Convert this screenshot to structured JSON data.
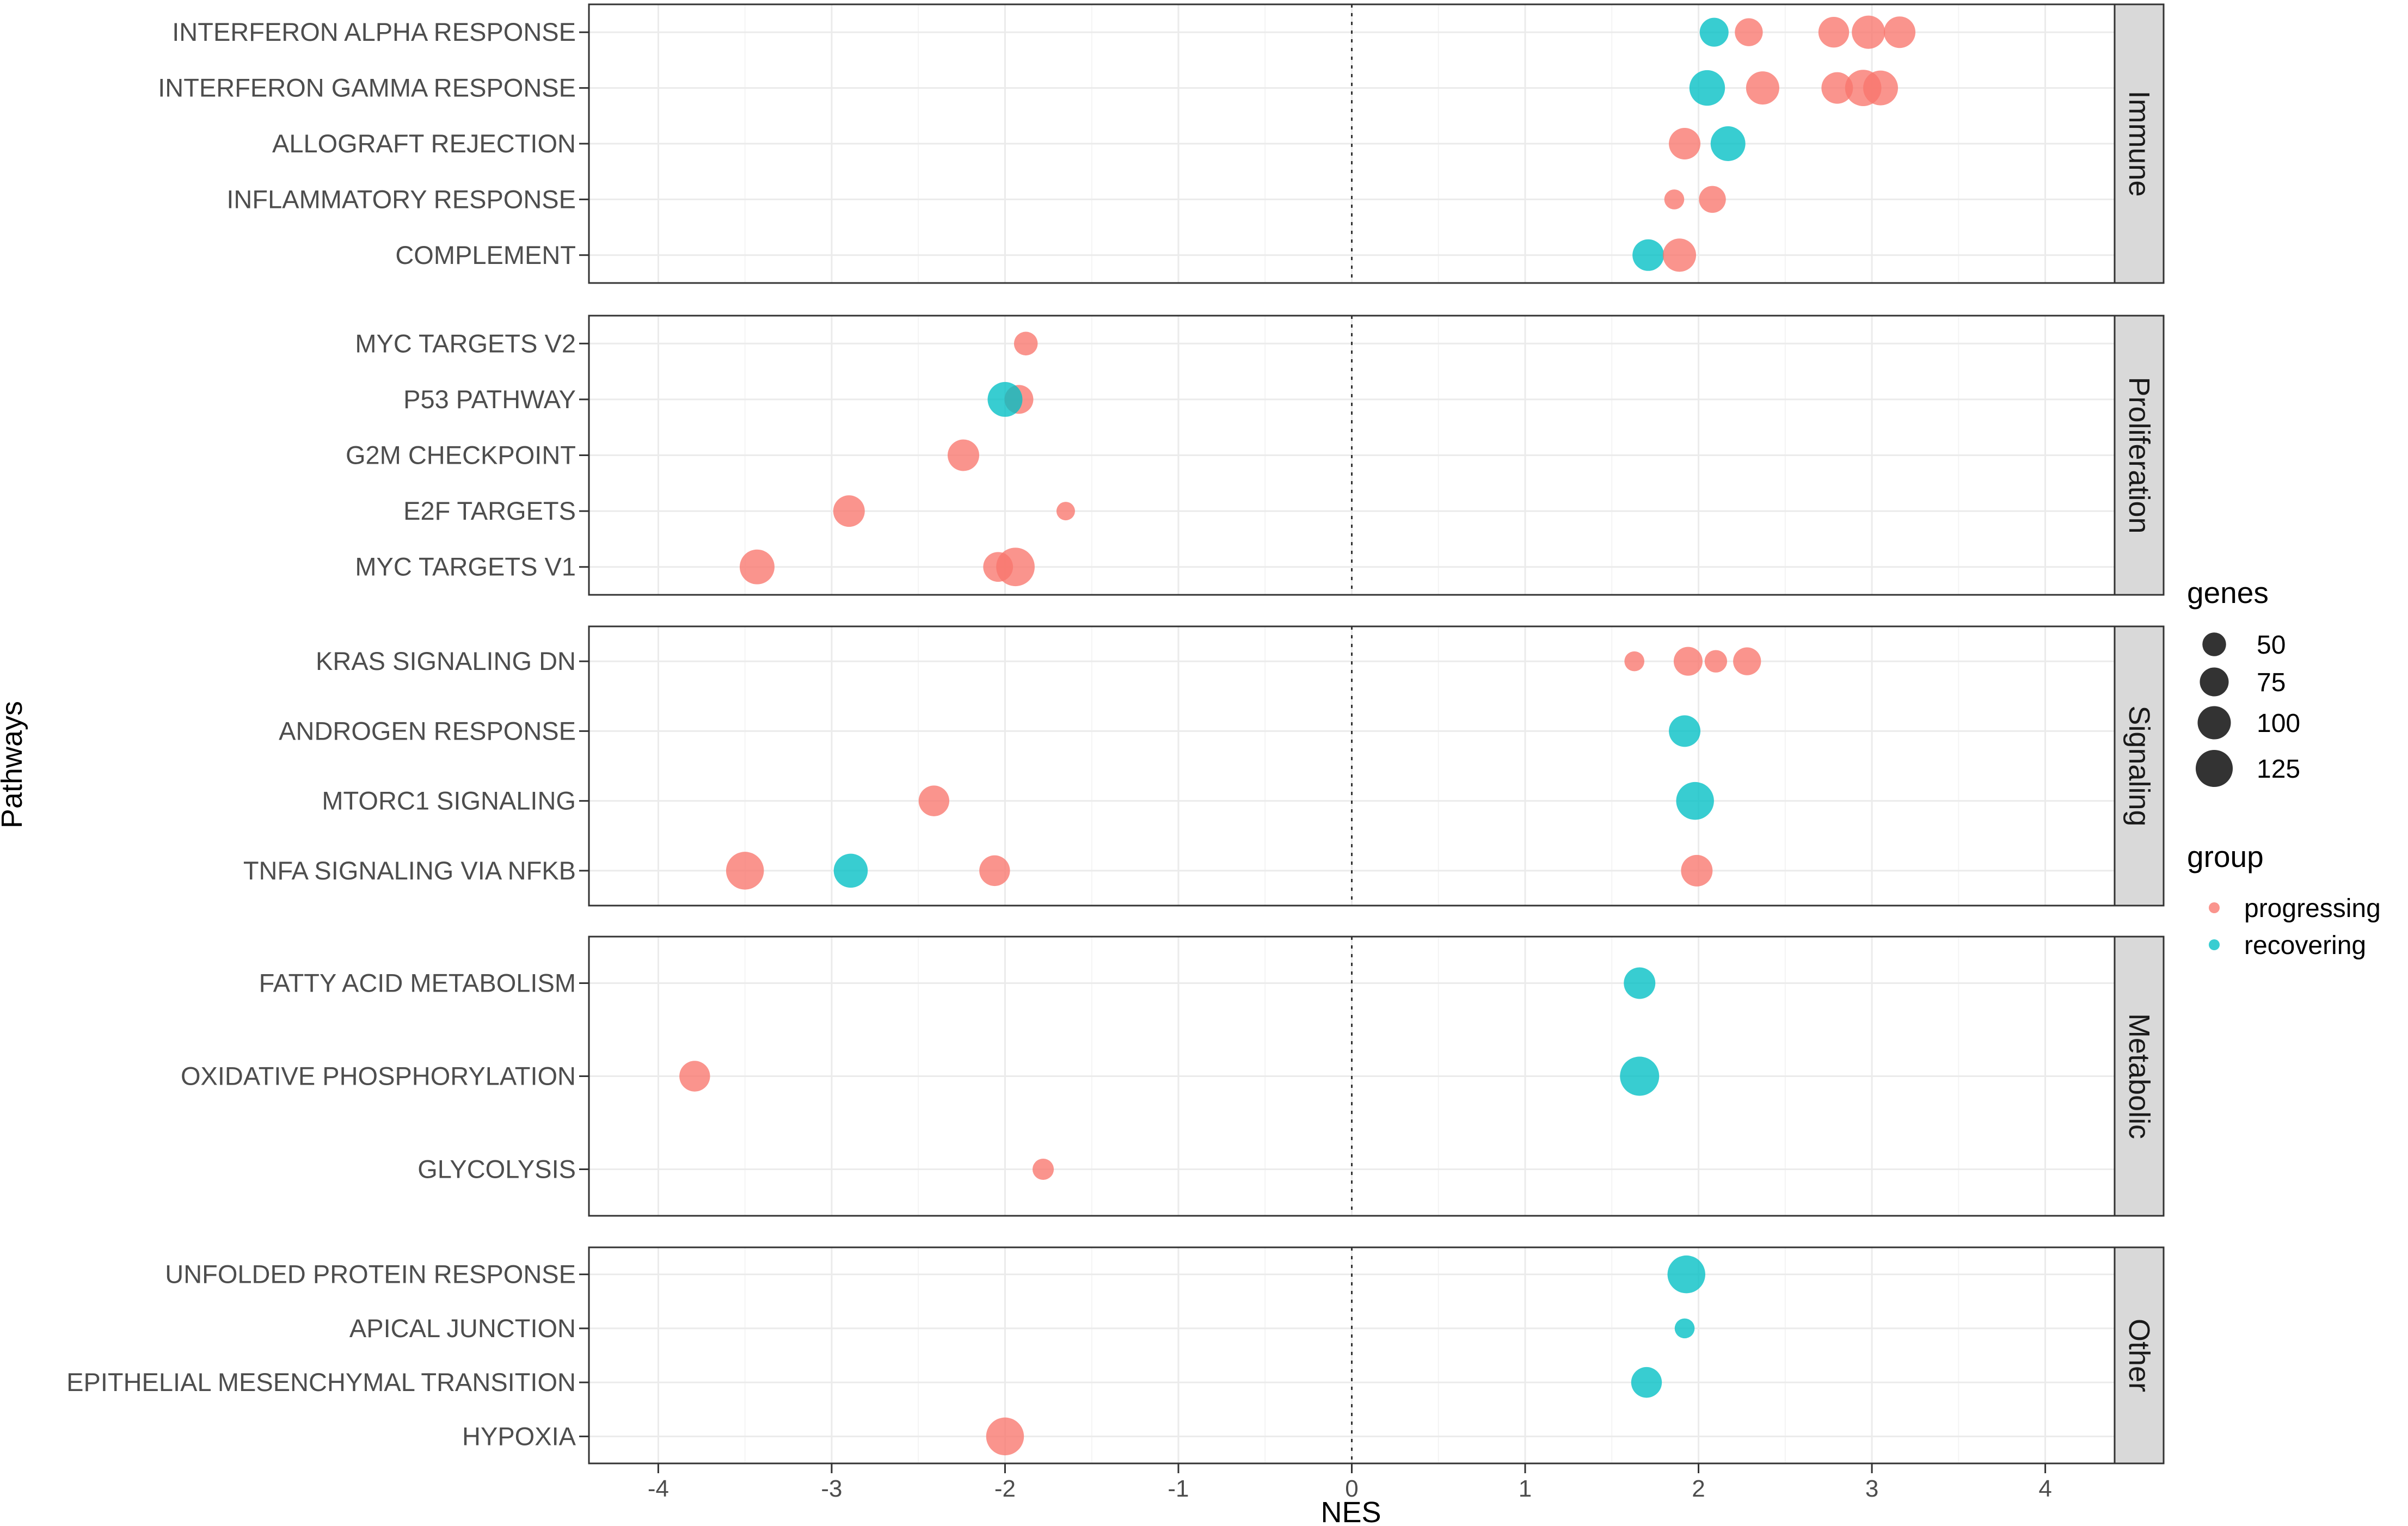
{
  "chart_data": {
    "type": "scatter",
    "xlabel": "NES",
    "ylabel": "Pathways",
    "xlim": [
      -4.4,
      4.4
    ],
    "xticks": [
      -4,
      -3,
      -2,
      -1,
      0,
      1,
      2,
      3,
      4
    ],
    "reference_line": 0,
    "colors": {
      "progressing": "#F8766D",
      "recovering": "#00BFC4"
    },
    "facets": [
      {
        "name": "Immune",
        "pathways": [
          "INTERFERON ALPHA RESPONSE",
          "INTERFERON GAMMA RESPONSE",
          "ALLOGRAFT REJECTION",
          "INFLAMMATORY RESPONSE",
          "COMPLEMENT"
        ]
      },
      {
        "name": "Proliferation",
        "pathways": [
          "MYC TARGETS V2",
          "P53 PATHWAY",
          "G2M CHECKPOINT",
          "E2F TARGETS",
          "MYC TARGETS V1"
        ]
      },
      {
        "name": "Signaling",
        "pathways": [
          "KRAS SIGNALING DN",
          "ANDROGEN RESPONSE",
          "MTORC1 SIGNALING",
          "TNFA SIGNALING VIA NFKB"
        ]
      },
      {
        "name": "Metabolic",
        "pathways": [
          "FATTY ACID METABOLISM",
          "OXIDATIVE PHOSPHORYLATION",
          "GLYCOLYSIS"
        ]
      },
      {
        "name": "Other",
        "pathways": [
          "UNFOLDED PROTEIN RESPONSE",
          "APICAL JUNCTION",
          "EPITHELIAL MESENCHYMAL TRANSITION",
          "HYPOXIA"
        ]
      }
    ],
    "points": [
      {
        "pathway": "INTERFERON ALPHA RESPONSE",
        "group": "recovering",
        "nes": 2.09,
        "genes": 75
      },
      {
        "pathway": "INTERFERON ALPHA RESPONSE",
        "group": "progressing",
        "nes": 2.29,
        "genes": 70
      },
      {
        "pathway": "INTERFERON ALPHA RESPONSE",
        "group": "progressing",
        "nes": 2.78,
        "genes": 85
      },
      {
        "pathway": "INTERFERON ALPHA RESPONSE",
        "group": "progressing",
        "nes": 2.98,
        "genes": 100
      },
      {
        "pathway": "INTERFERON ALPHA RESPONSE",
        "group": "progressing",
        "nes": 3.16,
        "genes": 90
      },
      {
        "pathway": "INTERFERON GAMMA RESPONSE",
        "group": "recovering",
        "nes": 2.05,
        "genes": 115
      },
      {
        "pathway": "INTERFERON GAMMA RESPONSE",
        "group": "progressing",
        "nes": 2.37,
        "genes": 100
      },
      {
        "pathway": "INTERFERON GAMMA RESPONSE",
        "group": "progressing",
        "nes": 2.8,
        "genes": 90
      },
      {
        "pathway": "INTERFERON GAMMA RESPONSE",
        "group": "progressing",
        "nes": 2.95,
        "genes": 120
      },
      {
        "pathway": "INTERFERON GAMMA RESPONSE",
        "group": "progressing",
        "nes": 3.05,
        "genes": 110
      },
      {
        "pathway": "ALLOGRAFT REJECTION",
        "group": "progressing",
        "nes": 1.92,
        "genes": 90
      },
      {
        "pathway": "ALLOGRAFT REJECTION",
        "group": "recovering",
        "nes": 2.17,
        "genes": 110
      },
      {
        "pathway": "INFLAMMATORY RESPONSE",
        "group": "progressing",
        "nes": 1.86,
        "genes": 35
      },
      {
        "pathway": "INFLAMMATORY RESPONSE",
        "group": "progressing",
        "nes": 2.08,
        "genes": 65
      },
      {
        "pathway": "COMPLEMENT",
        "group": "recovering",
        "nes": 1.71,
        "genes": 90
      },
      {
        "pathway": "COMPLEMENT",
        "group": "progressing",
        "nes": 1.89,
        "genes": 100
      },
      {
        "pathway": "MYC TARGETS V2",
        "group": "progressing",
        "nes": -1.88,
        "genes": 50
      },
      {
        "pathway": "P53 PATHWAY",
        "group": "progressing",
        "nes": -1.92,
        "genes": 75
      },
      {
        "pathway": "P53 PATHWAY",
        "group": "recovering",
        "nes": -2.0,
        "genes": 110
      },
      {
        "pathway": "G2M CHECKPOINT",
        "group": "progressing",
        "nes": -2.24,
        "genes": 90
      },
      {
        "pathway": "E2F TARGETS",
        "group": "progressing",
        "nes": -2.9,
        "genes": 90
      },
      {
        "pathway": "E2F TARGETS",
        "group": "progressing",
        "nes": -1.65,
        "genes": 30
      },
      {
        "pathway": "MYC TARGETS V1",
        "group": "progressing",
        "nes": -3.43,
        "genes": 110
      },
      {
        "pathway": "MYC TARGETS V1",
        "group": "progressing",
        "nes": -2.04,
        "genes": 80
      },
      {
        "pathway": "MYC TARGETS V1",
        "group": "progressing",
        "nes": -1.94,
        "genes": 135
      },
      {
        "pathway": "KRAS SIGNALING DN",
        "group": "progressing",
        "nes": 1.63,
        "genes": 35
      },
      {
        "pathway": "KRAS SIGNALING DN",
        "group": "progressing",
        "nes": 1.94,
        "genes": 75
      },
      {
        "pathway": "KRAS SIGNALING DN",
        "group": "progressing",
        "nes": 2.1,
        "genes": 45
      },
      {
        "pathway": "KRAS SIGNALING DN",
        "group": "progressing",
        "nes": 2.28,
        "genes": 70
      },
      {
        "pathway": "ANDROGEN RESPONSE",
        "group": "recovering",
        "nes": 1.92,
        "genes": 90
      },
      {
        "pathway": "MTORC1 SIGNALING",
        "group": "progressing",
        "nes": -2.41,
        "genes": 85
      },
      {
        "pathway": "MTORC1 SIGNALING",
        "group": "recovering",
        "nes": 1.98,
        "genes": 130
      },
      {
        "pathway": "TNFA SIGNALING VIA NFKB",
        "group": "progressing",
        "nes": -3.5,
        "genes": 130
      },
      {
        "pathway": "TNFA SIGNALING VIA NFKB",
        "group": "recovering",
        "nes": -2.89,
        "genes": 105
      },
      {
        "pathway": "TNFA SIGNALING VIA NFKB",
        "group": "progressing",
        "nes": -2.06,
        "genes": 85
      },
      {
        "pathway": "TNFA SIGNALING VIA NFKB",
        "group": "progressing",
        "nes": 1.99,
        "genes": 90
      },
      {
        "pathway": "FATTY ACID METABOLISM",
        "group": "recovering",
        "nes": 1.66,
        "genes": 90
      },
      {
        "pathway": "OXIDATIVE PHOSPHORYLATION",
        "group": "progressing",
        "nes": -3.79,
        "genes": 85
      },
      {
        "pathway": "OXIDATIVE PHOSPHORYLATION",
        "group": "recovering",
        "nes": 1.66,
        "genes": 140
      },
      {
        "pathway": "GLYCOLYSIS",
        "group": "progressing",
        "nes": -1.78,
        "genes": 40
      },
      {
        "pathway": "UNFOLDED PROTEIN RESPONSE",
        "group": "recovering",
        "nes": 1.93,
        "genes": 130
      },
      {
        "pathway": "APICAL JUNCTION",
        "group": "recovering",
        "nes": 1.92,
        "genes": 35
      },
      {
        "pathway": "EPITHELIAL MESENCHYMAL TRANSITION",
        "group": "recovering",
        "nes": 1.7,
        "genes": 85
      },
      {
        "pathway": "HYPOXIA",
        "group": "progressing",
        "nes": -2.0,
        "genes": 130
      }
    ],
    "legend": {
      "size_title": "genes",
      "size_breaks": [
        50,
        75,
        100,
        125
      ],
      "color_title": "group",
      "groups": [
        "progressing",
        "recovering"
      ]
    }
  }
}
